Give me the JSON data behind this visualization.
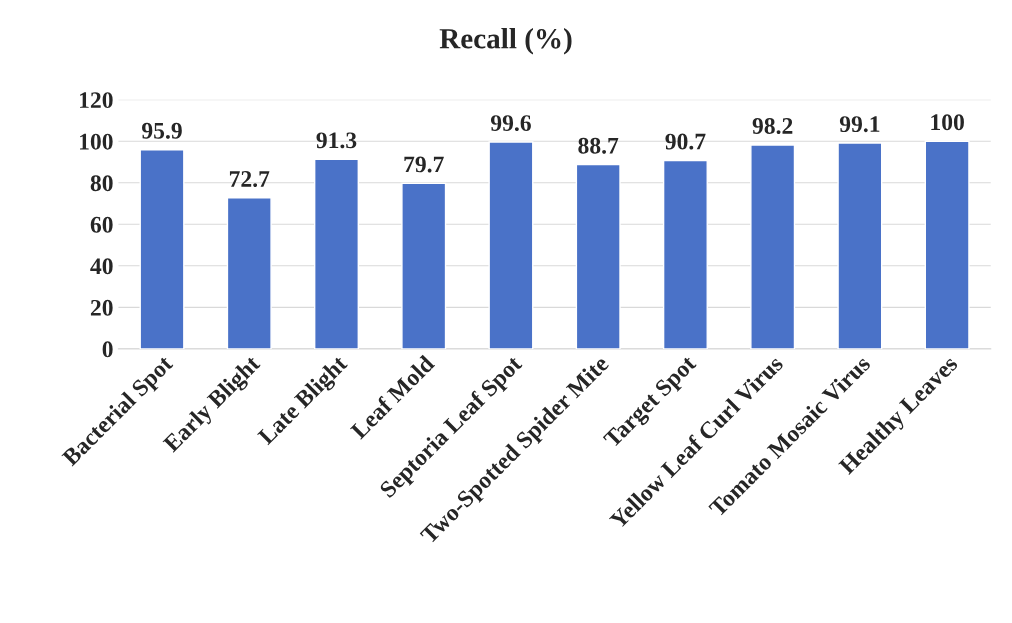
{
  "chart_data": {
    "type": "bar",
    "title": "Recall (%)",
    "categories": [
      "Bacterial Spot",
      "Early Blight",
      "Late Blight",
      "Leaf Mold",
      "Septoria Leaf Spot",
      "Two-Spotted Spider Mite",
      "Target Spot",
      "Yellow Leaf Curl Virus",
      "Tomato Mosaic Virus",
      "Healthy Leaves"
    ],
    "values": [
      95.9,
      72.7,
      91.3,
      79.7,
      99.6,
      88.7,
      90.7,
      98.2,
      99.1,
      100
    ],
    "color": "#4a72c8",
    "ylim": [
      0,
      120
    ],
    "yticks": [
      0,
      20,
      40,
      60,
      80,
      100,
      120
    ],
    "grid": "y",
    "data_labels": true
  }
}
